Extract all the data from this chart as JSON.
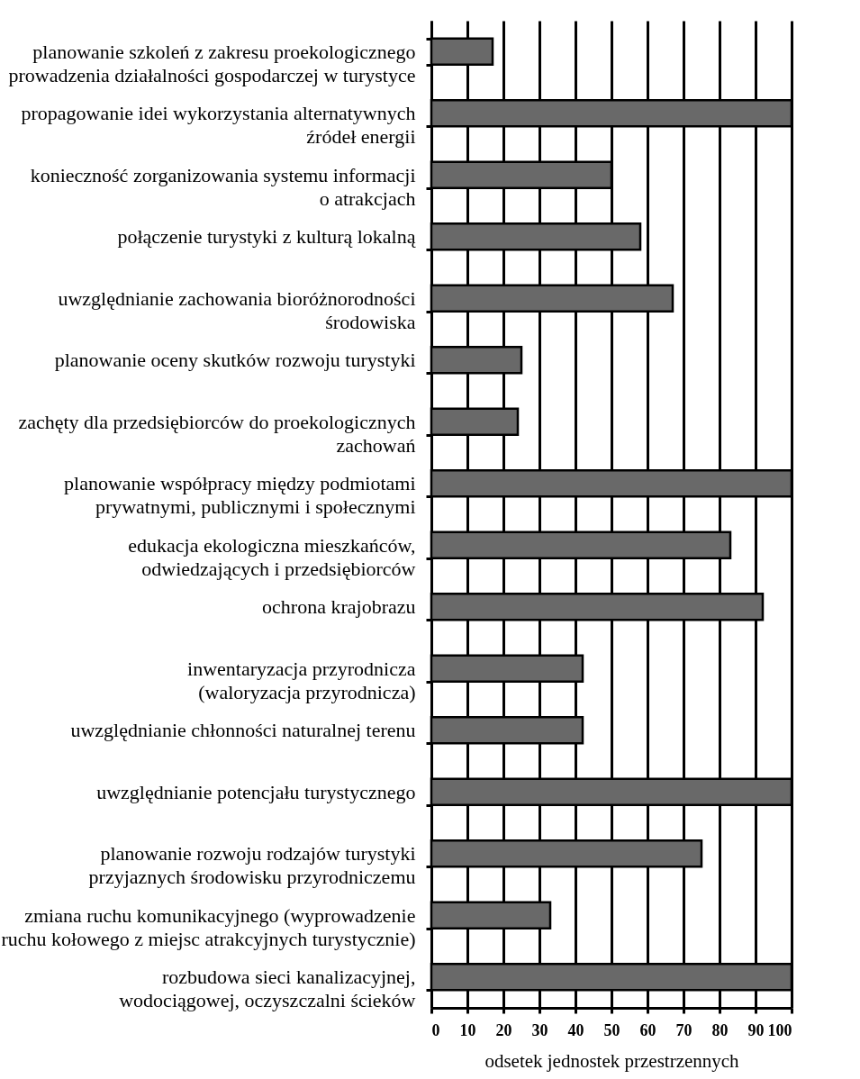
{
  "chart_data": {
    "type": "bar",
    "orientation": "horizontal",
    "xlabel": "odsetek jednostek przestrzennych",
    "categories": [
      "planowanie szkoleń z zakresu proekologicznego\nprowadzenia działalności gospodarczej w turystyce",
      "propagowanie idei wykorzystania alternatywnych\nźródeł energii",
      "konieczność zorganizowania systemu informacji\no atrakcjach",
      "połączenie turystyki z kulturą lokalną",
      "uwzględnianie zachowania bioróżnorodności\nśrodowiska",
      "planowanie oceny skutków rozwoju turystyki",
      "zachęty dla przedsiębiorców do proekologicznych\nzachowań",
      "planowanie współpracy między podmiotami\nprywatnymi, publicznymi i społecznymi",
      "edukacja ekologiczna mieszkańców,\nodwiedzających i przedsiębiorców",
      "ochrona krajobrazu",
      "inwentaryzacja przyrodnicza\n(waloryzacja przyrodnicza)",
      "uwzględnianie chłonności naturalnej terenu",
      "uwzględnianie potencjału turystycznego",
      "planowanie rozwoju rodzajów turystyki\nprzyjaznych środowisku przyrodniczemu",
      "zmiana ruchu komunikacyjnego (wyprowadzenie\nruchu kołowego z miejsc atrakcyjnych turystycznie)",
      "rozbudowa sieci kanalizacyjnej,\nwodociągowej, oczyszczalni ścieków"
    ],
    "values": [
      17,
      100,
      50,
      58,
      67,
      25,
      24,
      100,
      83,
      92,
      42,
      42,
      100,
      75,
      33,
      100
    ],
    "color": "#696969",
    "xlim": [
      0,
      100
    ],
    "xticks": [
      0,
      10,
      20,
      30,
      40,
      50,
      60,
      70,
      80,
      90,
      100
    ],
    "grid": "x"
  }
}
